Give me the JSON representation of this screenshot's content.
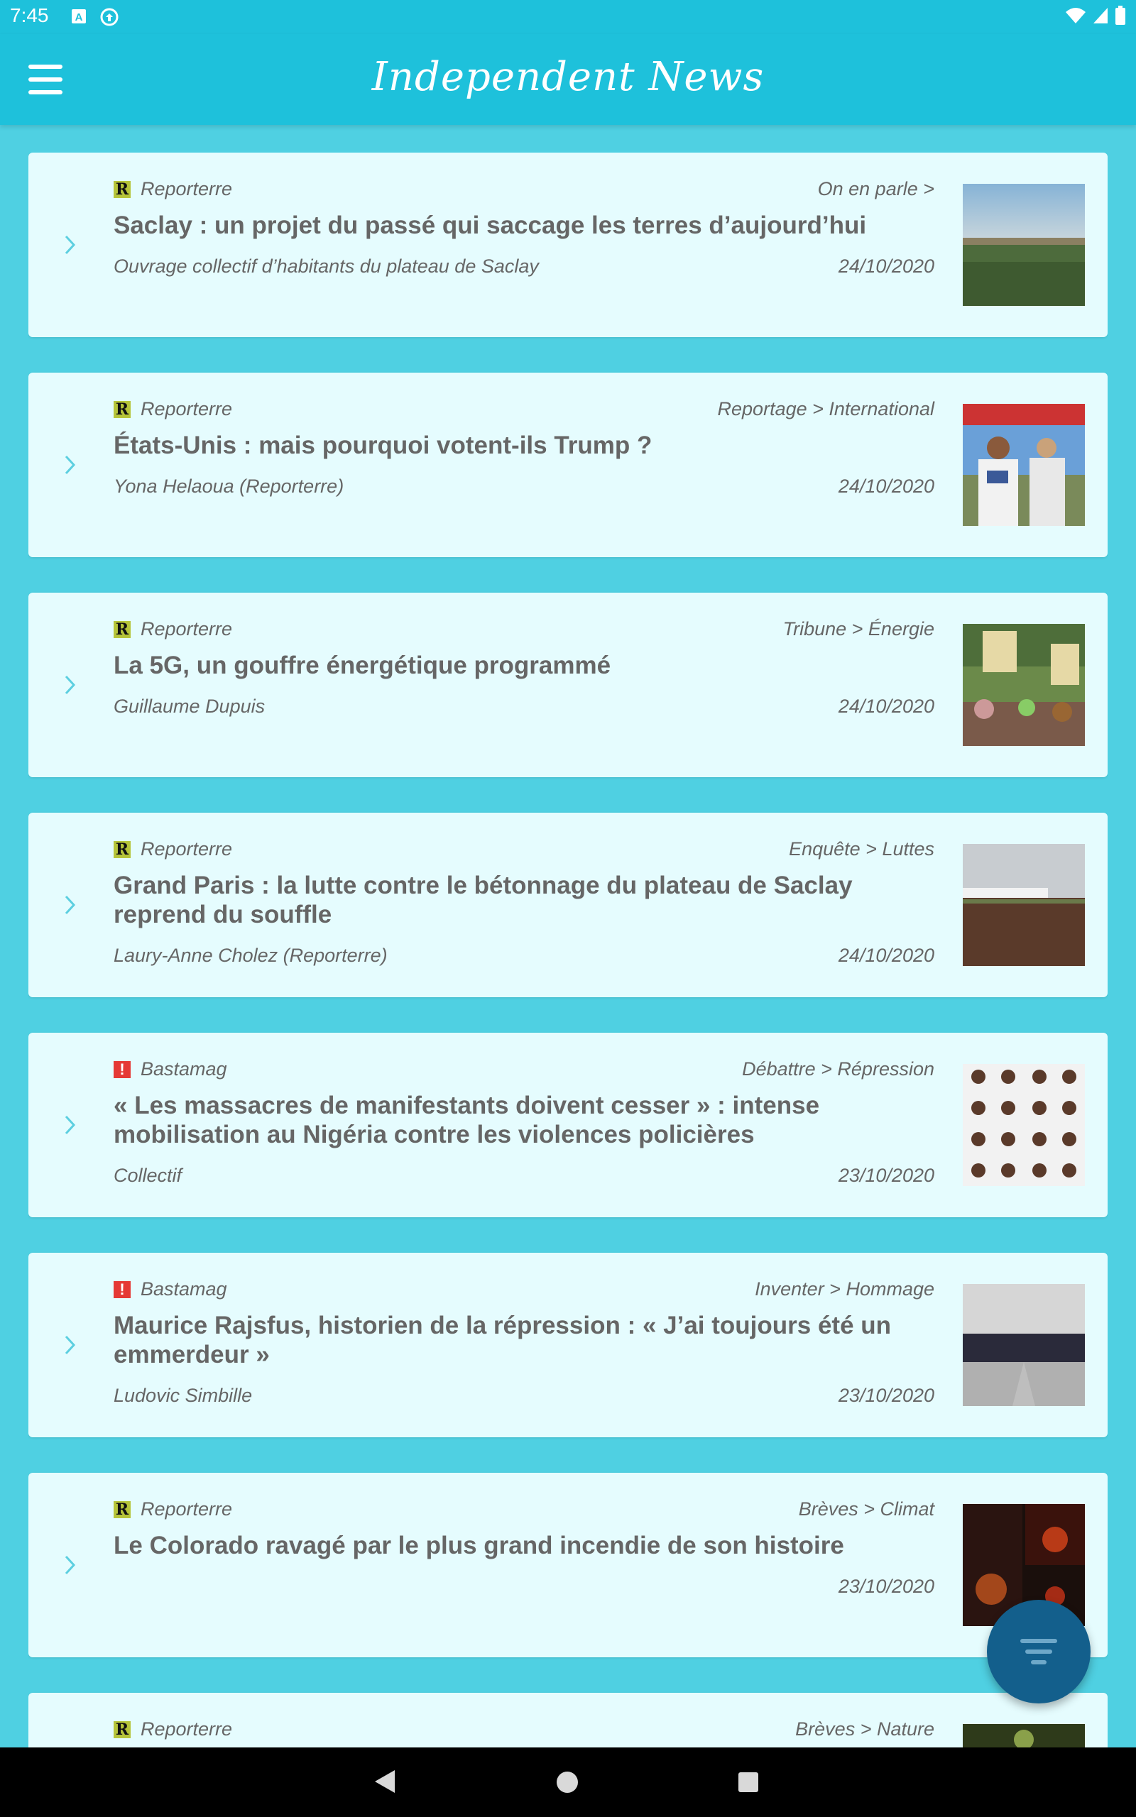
{
  "status_bar": {
    "time": "7:45"
  },
  "app_bar": {
    "title": "Independent News"
  },
  "colors": {
    "primary": "#1ec1db",
    "background": "#4fd0e2",
    "card": "#e5fcfe",
    "fab": "#135f8c",
    "reporterre_logo": "#b6c43a",
    "bastamag_logo": "#e53935"
  },
  "articles": [
    {
      "source": "Reporterre",
      "logo": "reporterre-logo",
      "category": "On en parle >",
      "title": "Saclay : un projet du passé qui saccage les terres d’aujourd’hui",
      "author": "Ouvrage collectif d’habitants du plateau de Saclay",
      "date": "24/10/2020",
      "thumbnail": "field-landscape-photo"
    },
    {
      "source": "Reporterre",
      "logo": "reporterre-logo",
      "category": "Reportage > International",
      "title": "États-Unis : mais pourquoi votent-ils Trump ?",
      "author": "Yona Helaoua (Reporterre)",
      "date": "24/10/2020",
      "thumbnail": "trump-supporters-photo"
    },
    {
      "source": "Reporterre",
      "logo": "reporterre-logo",
      "category": "Tribune > Énergie",
      "title": "La 5G, un gouffre énergétique programmé",
      "author": "Guillaume Dupuis",
      "date": "24/10/2020",
      "thumbnail": "5g-protest-photo"
    },
    {
      "source": "Reporterre",
      "logo": "reporterre-logo",
      "category": "Enquête > Luttes",
      "title": "Grand Paris : la lutte contre le bétonnage du plateau de Saclay reprend du souffle",
      "author": "Laury-Anne Cholez (Reporterre)",
      "date": "24/10/2020",
      "thumbnail": "field-banner-photo"
    },
    {
      "source": "Bastamag",
      "logo": "bastamag-logo",
      "category": "Débattre > Répression",
      "title": "« Les massacres de manifestants doivent cesser » : intense mobilisation au Nigéria contre les violences policières",
      "author": "Collectif",
      "date": "23/10/2020",
      "thumbnail": "collage-photo"
    },
    {
      "source": "Bastamag",
      "logo": "bastamag-logo",
      "category": "Inventer > Hommage",
      "title": "Maurice Rajsfus, historien de la répression : « J’ai toujours été un emmerdeur »",
      "author": "Ludovic Simbille",
      "date": "23/10/2020",
      "thumbnail": "police-street-photo"
    },
    {
      "source": "Reporterre",
      "logo": "reporterre-logo",
      "category": "Brèves > Climat",
      "title": "Le Colorado ravagé par le plus grand incendie de son histoire",
      "author": "",
      "date": "23/10/2020",
      "thumbnail": "wildfire-photo"
    },
    {
      "source": "Reporterre",
      "logo": "reporterre-logo",
      "category": "Brèves > Nature",
      "title": "",
      "author": "",
      "date": "",
      "thumbnail": "nature-photo"
    }
  ]
}
